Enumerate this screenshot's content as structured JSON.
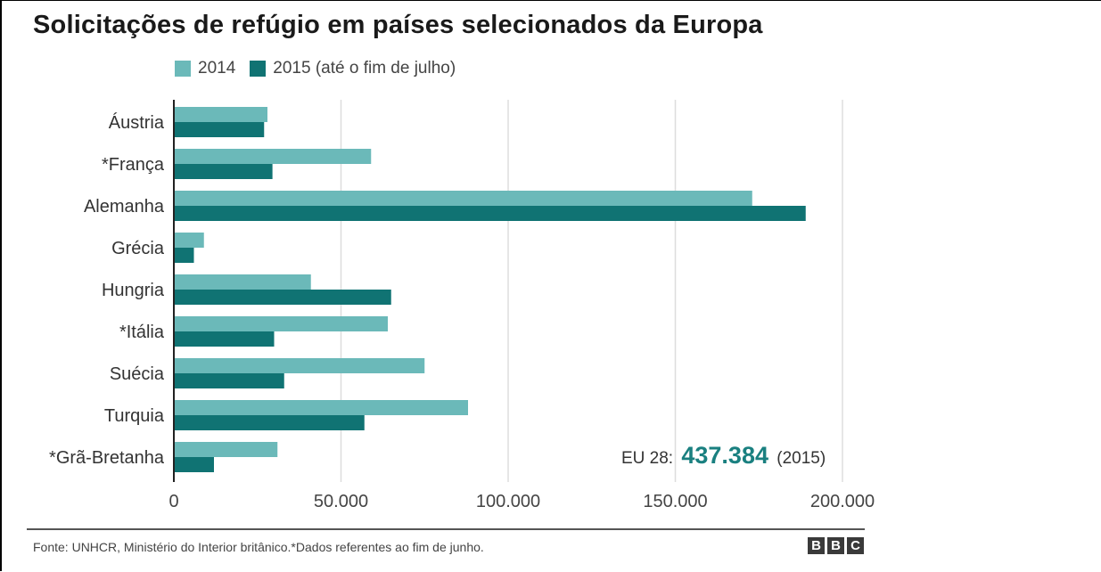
{
  "title": "Solicitações de refúgio em países selecionados da Europa",
  "legend": [
    {
      "label": "2014",
      "color": "#6bb9b9"
    },
    {
      "label": "2015 (até o fim de julho)",
      "color": "#107373"
    }
  ],
  "annotation": {
    "prefix": "EU 28:",
    "value": "437.384",
    "suffix": "(2015)"
  },
  "source": "Fonte: UNHCR, Ministério do Interior britânico.*Dados referentes ao fim de junho.",
  "logo": [
    "B",
    "B",
    "C"
  ],
  "chart_data": {
    "type": "bar",
    "orientation": "horizontal",
    "categories": [
      "Áustria",
      "*França",
      "Alemanha",
      "Grécia",
      "Hungria",
      "*Itália",
      "Suécia",
      "Turquia",
      "*Grã-Bretanha"
    ],
    "series": [
      {
        "name": "2014",
        "color": "#6bb9b9",
        "values": [
          28000,
          59000,
          173000,
          9000,
          41000,
          64000,
          75000,
          88000,
          31000
        ]
      },
      {
        "name": "2015 (até o fim de julho)",
        "color": "#107373",
        "values": [
          27000,
          29500,
          189000,
          6000,
          65000,
          30000,
          33000,
          57000,
          12000
        ]
      }
    ],
    "xlim": [
      0,
      200000
    ],
    "xticks": [
      0,
      50000,
      100000,
      150000,
      200000
    ],
    "xtick_labels": [
      "0",
      "50.000",
      "100.000",
      "150.000",
      "200.000"
    ],
    "grid": true
  }
}
